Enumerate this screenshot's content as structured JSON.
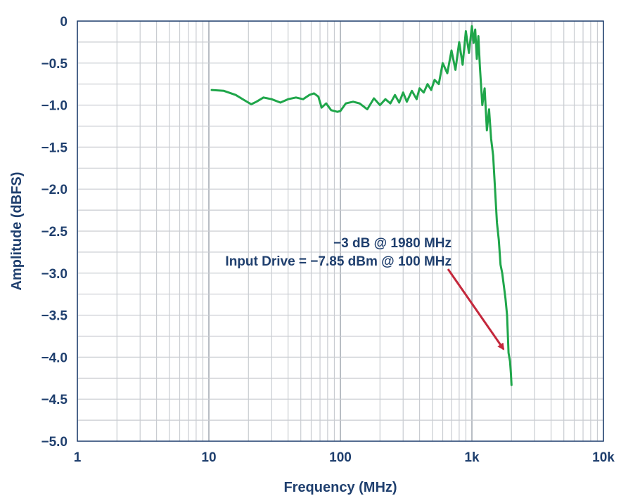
{
  "chart_data": {
    "type": "line",
    "title": "",
    "xlabel": "Frequency (MHz)",
    "ylabel": "Amplitude (dBFS)",
    "x_scale": "log",
    "xlim": [
      1,
      10000
    ],
    "ylim": [
      -5.0,
      0
    ],
    "x_ticks": [
      {
        "value": 1,
        "label": "1"
      },
      {
        "value": 10,
        "label": "10"
      },
      {
        "value": 100,
        "label": "100"
      },
      {
        "value": 1000,
        "label": "1k"
      },
      {
        "value": 10000,
        "label": "10k"
      }
    ],
    "y_ticks": [
      {
        "value": 0,
        "label": "0"
      },
      {
        "value": -0.5,
        "label": "−0.5"
      },
      {
        "value": -1.0,
        "label": "−1.0"
      },
      {
        "value": -1.5,
        "label": "−1.5"
      },
      {
        "value": -2.0,
        "label": "−2.0"
      },
      {
        "value": -2.5,
        "label": "−2.5"
      },
      {
        "value": -3.0,
        "label": "−3.0"
      },
      {
        "value": -3.5,
        "label": "−3.5"
      },
      {
        "value": -4.0,
        "label": "−4.0"
      },
      {
        "value": -4.5,
        "label": "−4.5"
      },
      {
        "value": -5.0,
        "label": "−5.0"
      }
    ],
    "grid": true,
    "colors": {
      "line": "#1fa64a",
      "arrow": "#c4283c",
      "grid": "#c9ccd1",
      "text": "#1f3f6e"
    },
    "series": [
      {
        "x": [
          10.5,
          13,
          16,
          19,
          21,
          23,
          26,
          30,
          35,
          40,
          46,
          52,
          58,
          63,
          68,
          72,
          78,
          85,
          95,
          100,
          110,
          125,
          140,
          160,
          180,
          200,
          220,
          240,
          260,
          280,
          300,
          320,
          350,
          380,
          400,
          430,
          460,
          490,
          520,
          560,
          600,
          650,
          700,
          750,
          800,
          850,
          900,
          950,
          1000,
          1030,
          1060,
          1090,
          1120,
          1150,
          1200,
          1250,
          1300,
          1350,
          1400,
          1450,
          1500,
          1550,
          1600,
          1650,
          1700,
          1750,
          1800,
          1850,
          1900,
          1950,
          1980,
          2000
        ],
        "y": [
          -0.82,
          -0.83,
          -0.88,
          -0.95,
          -0.99,
          -0.96,
          -0.91,
          -0.93,
          -0.97,
          -0.93,
          -0.91,
          -0.93,
          -0.88,
          -0.86,
          -0.9,
          -1.03,
          -0.98,
          -1.06,
          -1.08,
          -1.07,
          -0.98,
          -0.96,
          -0.98,
          -1.05,
          -0.92,
          -1.0,
          -0.93,
          -0.98,
          -0.88,
          -0.97,
          -0.85,
          -0.96,
          -0.83,
          -0.93,
          -0.8,
          -0.85,
          -0.75,
          -0.82,
          -0.7,
          -0.75,
          -0.5,
          -0.62,
          -0.35,
          -0.58,
          -0.25,
          -0.52,
          -0.12,
          -0.38,
          -0.06,
          -0.26,
          -0.1,
          -0.45,
          -0.18,
          -0.55,
          -1.0,
          -0.8,
          -1.3,
          -1.05,
          -1.4,
          -1.6,
          -2.0,
          -2.4,
          -2.6,
          -2.9,
          -3.0,
          -3.15,
          -3.3,
          -3.5,
          -3.95,
          -4.05,
          -4.2,
          -4.33
        ]
      }
    ],
    "annotation": {
      "lines": [
        "−3 dB @ 1980 MHz",
        "Input Drive = −7.85 dBm @ 100 MHz"
      ],
      "target": {
        "x": 1980,
        "y": -4.0
      }
    }
  }
}
